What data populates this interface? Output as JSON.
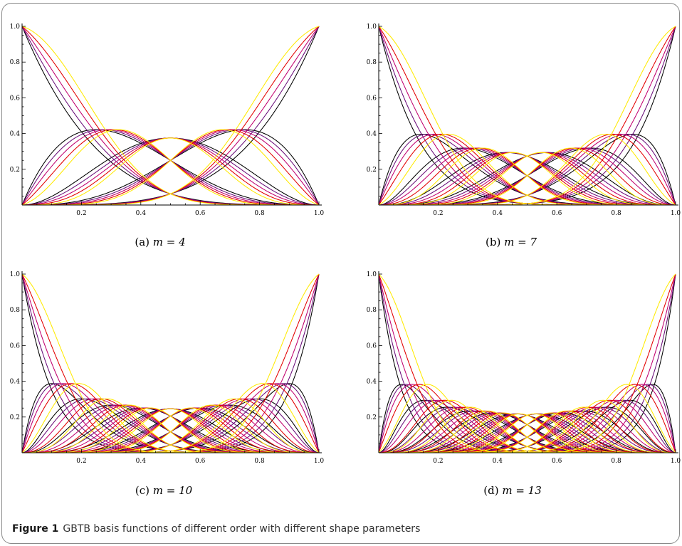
{
  "figure": {
    "label": "Figure 1",
    "caption": "GBTB basis functions of different order with different shape parameters"
  },
  "colors": {
    "shape_param_curves": [
      "#000000",
      "#6a0f7a",
      "#c0006f",
      "#e30000",
      "#ffea00"
    ]
  },
  "chart_data": [
    {
      "type": "line",
      "subcaption_tag": "(a)",
      "subcaption_eq": "m = 4",
      "m": 4,
      "xlim": [
        0,
        1
      ],
      "ylim": [
        0,
        1
      ],
      "xticks": [
        "0.2",
        "0.4",
        "0.6",
        "0.8",
        "1.0"
      ],
      "yticks": [
        "0.2",
        "0.4",
        "0.6",
        "0.8",
        "1.0"
      ],
      "series_count_per_shape_parameter": 5,
      "shape_parameter_curves": 5,
      "peak_interior_value_approx": 0.48,
      "center_value_at_x_0.5_approx": 0.44
    },
    {
      "type": "line",
      "subcaption_tag": "(b)",
      "subcaption_eq": "m = 7",
      "m": 7,
      "xlim": [
        0,
        1
      ],
      "ylim": [
        0,
        1
      ],
      "xticks": [
        "0.2",
        "0.4",
        "0.6",
        "0.8",
        "1.0"
      ],
      "yticks": [
        "0.2",
        "0.4",
        "0.6",
        "0.8",
        "1.0"
      ],
      "series_count_per_shape_parameter": 8,
      "shape_parameter_curves": 5,
      "peak_interior_value_approx": 0.41
    },
    {
      "type": "line",
      "subcaption_tag": "(c)",
      "subcaption_eq": "m = 10",
      "m": 10,
      "xlim": [
        0,
        1
      ],
      "ylim": [
        0,
        1
      ],
      "xticks": [
        "0.2",
        "0.4",
        "0.6",
        "0.8",
        "1.0"
      ],
      "yticks": [
        "0.2",
        "0.4",
        "0.6",
        "0.8",
        "1.0"
      ],
      "series_count_per_shape_parameter": 11,
      "shape_parameter_curves": 5,
      "peak_interior_value_approx": 0.39
    },
    {
      "type": "line",
      "subcaption_tag": "(d)",
      "subcaption_eq": "m = 13",
      "m": 13,
      "xlim": [
        0,
        1
      ],
      "ylim": [
        0,
        1
      ],
      "xticks": [
        "0.2",
        "0.4",
        "0.6",
        "0.8",
        "1.0"
      ],
      "yticks": [
        "0.2",
        "0.4",
        "0.6",
        "0.8",
        "1.0"
      ],
      "series_count_per_shape_parameter": 14,
      "shape_parameter_curves": 5,
      "peak_interior_value_approx": 0.38
    }
  ]
}
